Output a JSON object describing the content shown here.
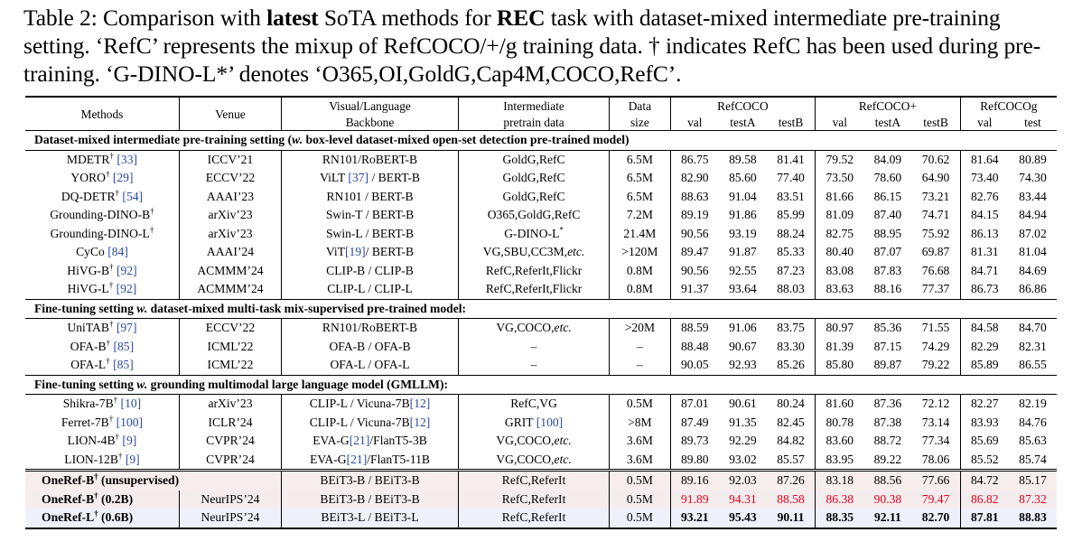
{
  "caption": {
    "prefix": "Table 2: Comparison with ",
    "bold1": "latest",
    "mid1": " SoTA methods for ",
    "bold2": "REC",
    "mid2": " task with dataset-mixed intermediate pre-training setting. ‘RefC’ represents the mixup of RefCOCO/+/g training data. † indicates RefC has been used during pre-training. ‘G-DINO-L*’ denotes ‘O365,OI,GoldG,Cap4M,COCO,RefC’."
  },
  "headers": {
    "methods": "Methods",
    "venue": "Venue",
    "backbone1": "Visual/Language",
    "backbone2": "Backbone",
    "pretrain1": "Intermediate",
    "pretrain2": "pretrain data",
    "size1": "Data",
    "size2": "size",
    "refcoco": "RefCOCO",
    "refcocop": "RefCOCO+",
    "refcocog": "RefCOCOg",
    "val": "val",
    "testA": "testA",
    "testB": "testB",
    "test": "test"
  },
  "sections": [
    {
      "title_bold": "Dataset-mixed intermediate pre-training setting (",
      "title_italic": "w.",
      "title_rest": " box-level dataset-mixed open-set detection pre-trained model)",
      "rows": [
        {
          "method": "MDETR",
          "dagger": "†",
          "cite": "[33]",
          "venue": "ICCV’21",
          "backbone": "RN101/RoBERT-B",
          "data": "GoldG,RefC",
          "size": "6.5M",
          "vals": [
            "86.75",
            "89.58",
            "81.41",
            "79.52",
            "84.09",
            "70.62",
            "81.64",
            "80.89"
          ]
        },
        {
          "method": "YORO",
          "dagger": "†",
          "cite": "[29]",
          "venue": "ECCV’22",
          "backbone": "ViLT [37] / BERT-B",
          "data": "GoldG,RefC",
          "size": "6.5M",
          "vals": [
            "82.90",
            "85.60",
            "77.40",
            "73.50",
            "78.60",
            "64.90",
            "73.40",
            "74.30"
          ]
        },
        {
          "method": "DQ-DETR",
          "dagger": "†",
          "cite": "[54]",
          "venue": "AAAI’23",
          "backbone": "RN101 / BERT-B",
          "data": "GoldG,RefC",
          "size": "6.5M",
          "vals": [
            "88.63",
            "91.04",
            "83.51",
            "81.66",
            "86.15",
            "73.21",
            "82.76",
            "83.44"
          ]
        },
        {
          "method": "Grounding-DINO-B",
          "dagger": "†",
          "cite": "",
          "venue": "arXiv’23",
          "backbone": "Swin-T / BERT-B",
          "data": "O365,GoldG,RefC",
          "size": "7.2M",
          "vals": [
            "89.19",
            "91.86",
            "85.99",
            "81.09",
            "87.40",
            "74.71",
            "84.15",
            "84.94"
          ]
        },
        {
          "method": "Grounding-DINO-L",
          "dagger": "†",
          "cite": "",
          "venue": "arXiv’23",
          "backbone": "Swin-L / BERT-B",
          "data": "G-DINO-L*",
          "size": "21.4M",
          "vals": [
            "90.56",
            "93.19",
            "88.24",
            "82.75",
            "88.95",
            "75.92",
            "86.13",
            "87.02"
          ]
        },
        {
          "method": "CyCo",
          "dagger": "",
          "cite": "[84]",
          "venue": "AAAI’24",
          "backbone": "ViT[19]/ BERT-B",
          "data": "VG,SBU,CC3M,etc.",
          "size": ">120M",
          "vals": [
            "89.47",
            "91.87",
            "85.33",
            "80.40",
            "87.07",
            "69.87",
            "81.31",
            "81.04"
          ]
        },
        {
          "method": "HiVG-B",
          "dagger": "†",
          "cite": "[92]",
          "venue": "ACMMM’24",
          "backbone": "CLIP-B / CLIP-B",
          "data": "RefC,ReferIt,Flickr",
          "size": "0.8M",
          "vals": [
            "90.56",
            "92.55",
            "87.23",
            "83.08",
            "87.83",
            "76.68",
            "84.71",
            "84.69"
          ]
        },
        {
          "method": "HiVG-L",
          "dagger": "†",
          "cite": "[92]",
          "venue": "ACMMM’24",
          "backbone": "CLIP-L / CLIP-L",
          "data": "RefC,ReferIt,Flickr",
          "size": "0.8M",
          "vals": [
            "91.37",
            "93.64",
            "88.03",
            "83.63",
            "88.16",
            "77.37",
            "86.73",
            "86.86"
          ]
        }
      ]
    },
    {
      "title_bold": "Fine-tuning setting ",
      "title_italic": "w.",
      "title_rest": " dataset-mixed multi-task mix-supervised pre-trained model:",
      "rows": [
        {
          "method": "UniTAB",
          "dagger": "†",
          "cite": "[97]",
          "venue": "ECCV’22",
          "backbone": "RN101/RoBERT-B",
          "data": "VG,COCO,etc.",
          "size": ">20M",
          "vals": [
            "88.59",
            "91.06",
            "83.75",
            "80.97",
            "85.36",
            "71.55",
            "84.58",
            "84.70"
          ]
        },
        {
          "method": "OFA-B",
          "dagger": "†",
          "cite": "[85]",
          "venue": "ICML’22",
          "backbone": "OFA-B / OFA-B",
          "data": "–",
          "size": "–",
          "vals": [
            "88.48",
            "90.67",
            "83.30",
            "81.39",
            "87.15",
            "74.29",
            "82.29",
            "82.31"
          ]
        },
        {
          "method": "OFA-L",
          "dagger": "†",
          "cite": "[85]",
          "venue": "ICML’22",
          "backbone": "OFA-L / OFA-L",
          "data": "–",
          "size": "–",
          "vals": [
            "90.05",
            "92.93",
            "85.26",
            "85.80",
            "89.87",
            "79.22",
            "85.89",
            "86.55"
          ]
        }
      ]
    },
    {
      "title_bold": "Fine-tuning setting ",
      "title_italic": "w.",
      "title_rest": " grounding multimodal large language model (GMLLM):",
      "rows": [
        {
          "method": "Shikra-7B",
          "dagger": "†",
          "cite": "[10]",
          "venue": "arXiv’23",
          "backbone": "CLIP-L / Vicuna-7B[12]",
          "data": "RefC,VG",
          "size": "0.5M",
          "vals": [
            "87.01",
            "90.61",
            "80.24",
            "81.60",
            "87.36",
            "72.12",
            "82.27",
            "82.19"
          ]
        },
        {
          "method": "Ferret-7B",
          "dagger": "†",
          "cite": "[100]",
          "venue": "ICLR’24",
          "backbone": "CLIP-L / Vicuna-7B[12]",
          "data": "GRIT [100]",
          "size": ">8M",
          "vals": [
            "87.49",
            "91.35",
            "82.45",
            "80.78",
            "87.38",
            "73.14",
            "83.93",
            "84.76"
          ]
        },
        {
          "method": "LION-4B",
          "dagger": "†",
          "cite": "[9]",
          "venue": "CVPR’24",
          "backbone": "EVA-G[21]/FlanT5-3B",
          "data": "VG,COCO,etc.",
          "size": "3.6M",
          "vals": [
            "89.73",
            "92.29",
            "84.82",
            "83.60",
            "88.72",
            "77.34",
            "85.69",
            "85.63"
          ]
        },
        {
          "method": "LION-12B",
          "dagger": "†",
          "cite": "[9]",
          "venue": "CVPR’24",
          "backbone": "EVA-G[21]/FlanT5-11B",
          "data": "VG,COCO,etc.",
          "size": "3.6M",
          "vals": [
            "89.80",
            "93.02",
            "85.57",
            "83.95",
            "89.22",
            "78.06",
            "85.52",
            "85.74"
          ]
        }
      ]
    }
  ],
  "ours": [
    {
      "method": "OneRef-B",
      "dagger": "†",
      "suffix": " (unsupervised)",
      "venue": "",
      "backbone": "BEiT3-B / BEiT3-B",
      "data": "RefC,ReferIt",
      "size": "0.5M",
      "vals": [
        "89.16",
        "92.03",
        "87.26",
        "83.18",
        "88.56",
        "77.66",
        "84.72",
        "85.17"
      ]
    },
    {
      "method": "OneRef-B",
      "dagger": "†",
      "suffix": " (0.2B)",
      "venue": "NeurIPS’24",
      "backbone": "BEiT3-B / BEiT3-B",
      "data": "RefC,ReferIt",
      "size": "0.5M",
      "vals": [
        "91.89",
        "94.31",
        "88.58",
        "86.38",
        "90.38",
        "79.47",
        "86.82",
        "87.32"
      ]
    },
    {
      "method": "OneRef-L",
      "dagger": "†",
      "suffix": " (0.6B)",
      "venue": "NeurIPS’24",
      "backbone": "BEiT3-L / BEiT3-L",
      "data": "RefC,ReferIt",
      "size": "0.5M",
      "vals": [
        "93.21",
        "95.43",
        "90.11",
        "88.35",
        "92.11",
        "82.70",
        "87.81",
        "88.83"
      ]
    }
  ],
  "colors": {
    "cite": "#2b4aa0",
    "red": "#e0001b"
  }
}
